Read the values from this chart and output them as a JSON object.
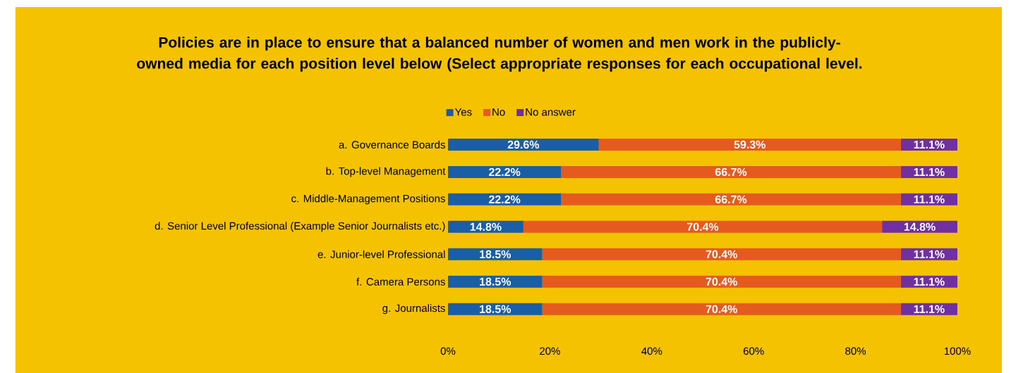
{
  "chart_data": {
    "type": "bar",
    "orientation": "horizontal",
    "stacked": true,
    "legend": "top",
    "title": "Policies are in place to ensure that a balanced number of women and men work in the publicly-owned media for each position level below (Select appropriate responses for each occupational level.",
    "categories": [
      "a. Governance Boards",
      "b. Top-level Management",
      "c. Middle-Management Positions",
      "d. Senior Level Professional (Example Senior Journalists etc.)",
      "e. Junior-level Professional",
      "f. Camera Persons",
      "g. Journalists"
    ],
    "series": [
      {
        "name": "Yes",
        "color": "#1a5ea6",
        "values": [
          29.6,
          22.2,
          22.2,
          14.8,
          18.5,
          18.5,
          18.5
        ],
        "value_labels": [
          "29.6%",
          "22.2%",
          "22.2%",
          "14.8%",
          "18.5%",
          "18.5%",
          "18.5%"
        ]
      },
      {
        "name": "No",
        "color": "#e55a1e",
        "values": [
          59.3,
          66.7,
          66.7,
          70.4,
          70.4,
          70.4,
          70.4
        ],
        "value_labels": [
          "59.3%",
          "66.7%",
          "66.7%",
          "70.4%",
          "70.4%",
          "70.4%",
          "70.4%"
        ]
      },
      {
        "name": "No answer",
        "color": "#7030a0",
        "values": [
          11.1,
          11.1,
          11.1,
          14.8,
          11.1,
          11.1,
          11.1
        ],
        "value_labels": [
          "11.1%",
          "11.1%",
          "11.1%",
          "14.8%",
          "11.1%",
          "11.1%",
          "11.1%"
        ]
      }
    ],
    "xlim": [
      0,
      100
    ],
    "xticks": [
      {
        "value": 0,
        "label": "0%"
      },
      {
        "value": 20,
        "label": "20%"
      },
      {
        "value": 40,
        "label": "40%"
      },
      {
        "value": 60,
        "label": "60%"
      },
      {
        "value": 80,
        "label": "80%"
      },
      {
        "value": 100,
        "label": "100%"
      }
    ]
  }
}
